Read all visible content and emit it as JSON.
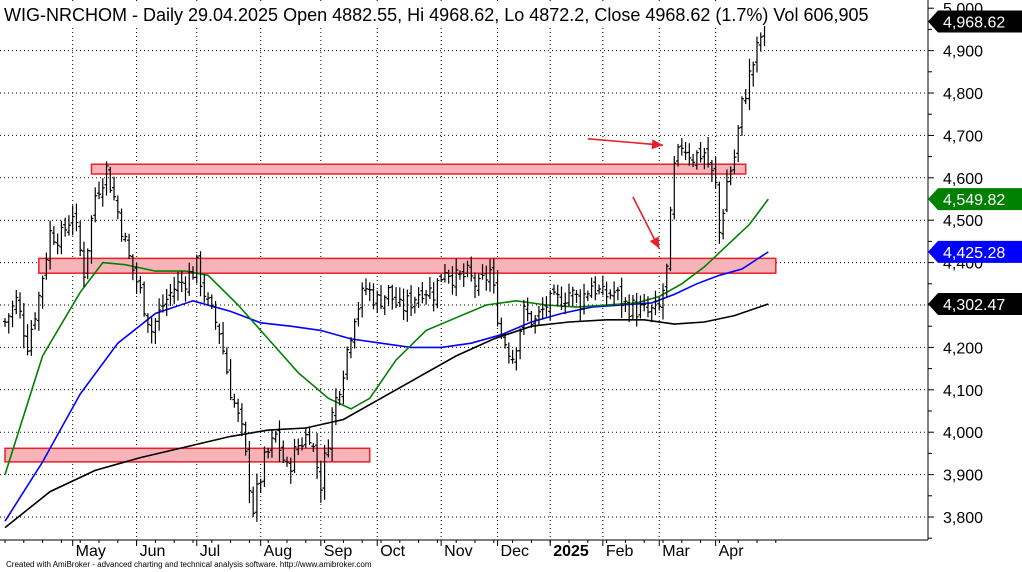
{
  "header": {
    "symbol": "WIG-NRCHOM",
    "text": "WIG-NRCHOM - Daily 29.04.2025 Open 4882.55, Hi 4968.62, Lo 4872.2, Close 4968.62 (1.7%) Vol 606,905"
  },
  "footer": {
    "text": "Created with AmiBroker - advanced charting and technical analysis software. http://www.amibroker.com"
  },
  "chart_data": {
    "type": "candlestick",
    "title": "WIG-NRCHOM - Daily",
    "ylim": [
      3740,
      5010
    ],
    "yticks": [
      3800,
      3900,
      4000,
      4100,
      4200,
      4300,
      4400,
      4500,
      4600,
      4700,
      4800,
      4900,
      5000
    ],
    "ytick_labels": [
      "3,800",
      "3,900",
      "4,000",
      "4,100",
      "4,200",
      "4,300",
      "4,400",
      "4,500",
      "4,600",
      "4,700",
      "4,800",
      "4,900",
      "5,000"
    ],
    "months": [
      {
        "label": "May",
        "day": 18
      },
      {
        "label": "Jun",
        "day": 35
      },
      {
        "label": "Jul",
        "day": 51
      },
      {
        "label": "Aug",
        "day": 68
      },
      {
        "label": "Sep",
        "day": 84
      },
      {
        "label": "Oct",
        "day": 99
      },
      {
        "label": "Nov",
        "day": 116
      },
      {
        "label": "Dec",
        "day": 131
      },
      {
        "label": "2025",
        "day": 145,
        "bold": true
      },
      {
        "label": "Feb",
        "day": 159
      },
      {
        "label": "Mar",
        "day": 174
      },
      {
        "label": "Apr",
        "day": 189
      }
    ],
    "last_values": [
      {
        "name": "Close",
        "value": 4968.62,
        "label": "4,968.62",
        "color": "#000000"
      },
      {
        "name": "MA green",
        "value": 4549.82,
        "label": "4,549.82",
        "color": "#008000"
      },
      {
        "name": "MA blue",
        "value": 4425.28,
        "label": "4,425.28",
        "color": "#0000ff"
      },
      {
        "name": "MA black",
        "value": 4302.47,
        "label": "4,302.47",
        "color": "#000000"
      }
    ],
    "zones": [
      {
        "from_day": 23,
        "to_day": 197,
        "low": 4609,
        "high": 4632
      },
      {
        "from_day": 9,
        "to_day": 205,
        "low": 4375,
        "high": 4410
      },
      {
        "from_day": 0,
        "to_day": 97,
        "low": 3930,
        "high": 3962
      }
    ],
    "arrows": [
      {
        "from_day": 155,
        "from_value": 4692,
        "to_day": 175,
        "to_value": 4677
      },
      {
        "from_day": 167,
        "from_value": 4555,
        "to_day": 174,
        "to_value": 4433
      }
    ],
    "close_path": [
      [
        0,
        4260
      ],
      [
        3,
        4310
      ],
      [
        6,
        4210
      ],
      [
        9,
        4320
      ],
      [
        12,
        4470
      ],
      [
        15,
        4460
      ],
      [
        18,
        4520
      ],
      [
        21,
        4380
      ],
      [
        24,
        4560
      ],
      [
        27,
        4620
      ],
      [
        30,
        4520
      ],
      [
        33,
        4410
      ],
      [
        36,
        4330
      ],
      [
        39,
        4240
      ],
      [
        42,
        4300
      ],
      [
        45,
        4340
      ],
      [
        48,
        4360
      ],
      [
        51,
        4390
      ],
      [
        54,
        4300
      ],
      [
        57,
        4240
      ],
      [
        60,
        4100
      ],
      [
        63,
        4000
      ],
      [
        66,
        3820
      ],
      [
        69,
        3930
      ],
      [
        72,
        3990
      ],
      [
        75,
        3910
      ],
      [
        78,
        3970
      ],
      [
        81,
        4000
      ],
      [
        84,
        3880
      ],
      [
        87,
        4040
      ],
      [
        90,
        4150
      ],
      [
        93,
        4280
      ],
      [
        96,
        4340
      ],
      [
        99,
        4310
      ],
      [
        102,
        4330
      ],
      [
        105,
        4290
      ],
      [
        108,
        4310
      ],
      [
        111,
        4340
      ],
      [
        114,
        4330
      ],
      [
        117,
        4390
      ],
      [
        120,
        4360
      ],
      [
        123,
        4370
      ],
      [
        126,
        4340
      ],
      [
        129,
        4380
      ],
      [
        132,
        4230
      ],
      [
        135,
        4180
      ],
      [
        138,
        4280
      ],
      [
        141,
        4260
      ],
      [
        144,
        4300
      ],
      [
        147,
        4310
      ],
      [
        150,
        4330
      ],
      [
        153,
        4310
      ],
      [
        156,
        4350
      ],
      [
        159,
        4320
      ],
      [
        162,
        4330
      ],
      [
        165,
        4300
      ],
      [
        168,
        4290
      ],
      [
        171,
        4280
      ],
      [
        174,
        4290
      ],
      [
        176,
        4380
      ],
      [
        178,
        4620
      ],
      [
        180,
        4680
      ],
      [
        183,
        4650
      ],
      [
        186,
        4660
      ],
      [
        189,
        4580
      ],
      [
        190,
        4470
      ],
      [
        192,
        4590
      ],
      [
        194,
        4650
      ],
      [
        196,
        4770
      ],
      [
        198,
        4840
      ],
      [
        200,
        4900
      ],
      [
        202,
        4968.62
      ]
    ],
    "ma_green": [
      [
        0,
        3900
      ],
      [
        10,
        4180
      ],
      [
        20,
        4330
      ],
      [
        26,
        4400
      ],
      [
        32,
        4395
      ],
      [
        40,
        4380
      ],
      [
        48,
        4380
      ],
      [
        54,
        4370
      ],
      [
        62,
        4300
      ],
      [
        70,
        4220
      ],
      [
        78,
        4140
      ],
      [
        86,
        4080
      ],
      [
        92,
        4055
      ],
      [
        97,
        4080
      ],
      [
        104,
        4170
      ],
      [
        112,
        4240
      ],
      [
        120,
        4270
      ],
      [
        128,
        4300
      ],
      [
        136,
        4310
      ],
      [
        144,
        4300
      ],
      [
        152,
        4295
      ],
      [
        160,
        4300
      ],
      [
        168,
        4305
      ],
      [
        174,
        4320
      ],
      [
        180,
        4350
      ],
      [
        186,
        4390
      ],
      [
        192,
        4440
      ],
      [
        198,
        4490
      ],
      [
        203,
        4549.82
      ]
    ],
    "ma_blue": [
      [
        0,
        3790
      ],
      [
        10,
        3930
      ],
      [
        20,
        4090
      ],
      [
        30,
        4210
      ],
      [
        40,
        4280
      ],
      [
        50,
        4310
      ],
      [
        60,
        4285
      ],
      [
        68,
        4258
      ],
      [
        76,
        4250
      ],
      [
        84,
        4240
      ],
      [
        92,
        4220
      ],
      [
        100,
        4210
      ],
      [
        108,
        4200
      ],
      [
        116,
        4200
      ],
      [
        124,
        4210
      ],
      [
        132,
        4230
      ],
      [
        140,
        4260
      ],
      [
        148,
        4280
      ],
      [
        156,
        4295
      ],
      [
        164,
        4300
      ],
      [
        172,
        4305
      ],
      [
        178,
        4325
      ],
      [
        184,
        4350
      ],
      [
        190,
        4370
      ],
      [
        196,
        4385
      ],
      [
        203,
        4425.28
      ]
    ],
    "ma_black": [
      [
        0,
        3775
      ],
      [
        12,
        3860
      ],
      [
        24,
        3910
      ],
      [
        36,
        3940
      ],
      [
        48,
        3965
      ],
      [
        60,
        3990
      ],
      [
        70,
        4005
      ],
      [
        80,
        4010
      ],
      [
        90,
        4030
      ],
      [
        100,
        4080
      ],
      [
        110,
        4130
      ],
      [
        120,
        4180
      ],
      [
        130,
        4220
      ],
      [
        140,
        4250
      ],
      [
        150,
        4260
      ],
      [
        160,
        4265
      ],
      [
        170,
        4265
      ],
      [
        178,
        4255
      ],
      [
        186,
        4260
      ],
      [
        194,
        4275
      ],
      [
        203,
        4302.47
      ]
    ]
  }
}
